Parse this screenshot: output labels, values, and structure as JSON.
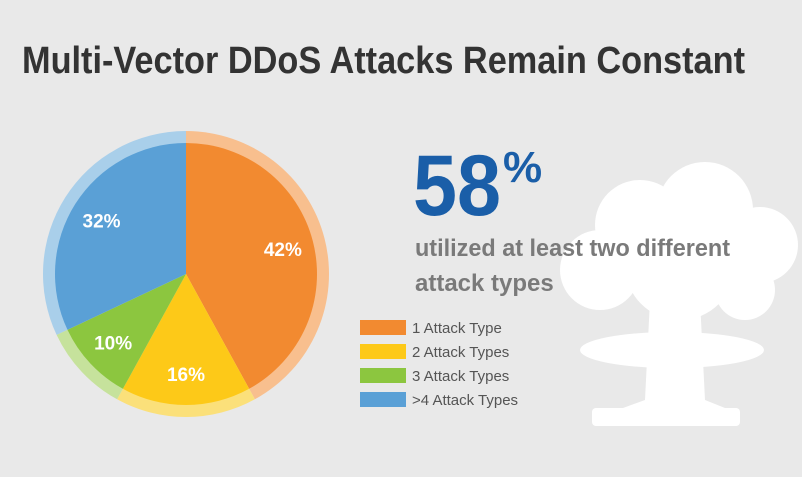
{
  "chart_data": {
    "type": "pie",
    "title": "Multi-Vector DDoS Attacks Remain Constant",
    "categories": [
      "1 Attack Type",
      "2 Attack Types",
      "3 Attack Types",
      ">4 Attack Types"
    ],
    "values": [
      42,
      16,
      10,
      32
    ],
    "value_labels": [
      "42%",
      "16%",
      "10%",
      "32%"
    ],
    "colors": [
      "#f28a30",
      "#fdc918",
      "#8cc63f",
      "#5aa0d6"
    ],
    "ring_colors": [
      "#f8bf8e",
      "#fbe07a",
      "#c6e29c",
      "#a9cfea"
    ],
    "highlight": {
      "number": "58",
      "unit": "%",
      "lines": [
        "utilized at least two different",
        "attack types"
      ]
    }
  }
}
